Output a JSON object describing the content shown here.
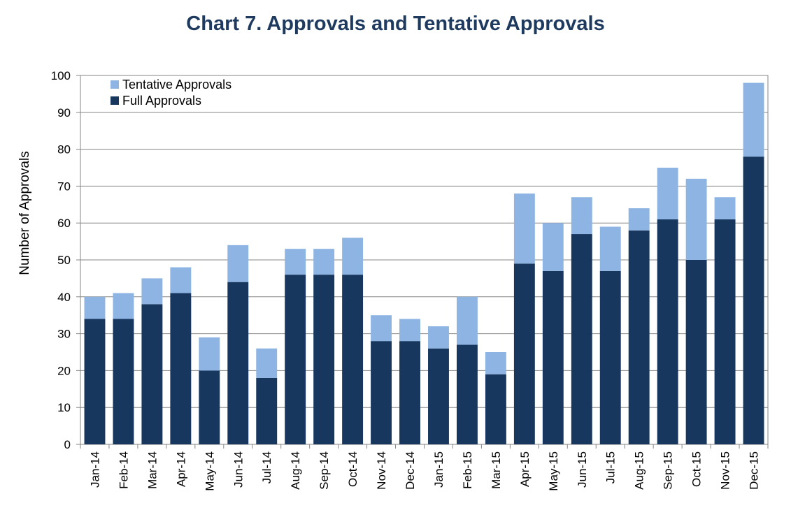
{
  "chart_data": {
    "type": "bar",
    "stacked": true,
    "title": "Chart 7. Approvals and Tentative Approvals",
    "xlabel": "",
    "ylabel": "Number of Approvals",
    "ylim": [
      0,
      100
    ],
    "yticks": [
      0,
      10,
      20,
      30,
      40,
      50,
      60,
      70,
      80,
      90,
      100
    ],
    "grid": true,
    "legend_position": "top-left",
    "categories": [
      "Jan-14",
      "Feb-14",
      "Mar-14",
      "Apr-14",
      "May-14",
      "Jun-14",
      "Jul-14",
      "Aug-14",
      "Sep-14",
      "Oct-14",
      "Nov-14",
      "Dec-14",
      "Jan-15",
      "Feb-15",
      "Mar-15",
      "Apr-15",
      "May-15",
      "Jun-15",
      "Jul-15",
      "Aug-15",
      "Sep-15",
      "Oct-15",
      "Nov-15",
      "Dec-15"
    ],
    "series": [
      {
        "name": "Full Approvals",
        "color": "#17375e",
        "values": [
          34,
          34,
          38,
          41,
          20,
          44,
          18,
          46,
          46,
          46,
          28,
          28,
          26,
          27,
          19,
          49,
          47,
          57,
          47,
          58,
          61,
          50,
          61,
          78
        ]
      },
      {
        "name": "Tentative Approvals",
        "color": "#8db4e2",
        "values": [
          6,
          7,
          7,
          7,
          9,
          10,
          8,
          7,
          7,
          10,
          7,
          6,
          6,
          13,
          6,
          19,
          13,
          10,
          12,
          6,
          14,
          22,
          6,
          20
        ]
      }
    ],
    "legend_order": [
      "Tentative Approvals",
      "Full Approvals"
    ]
  }
}
